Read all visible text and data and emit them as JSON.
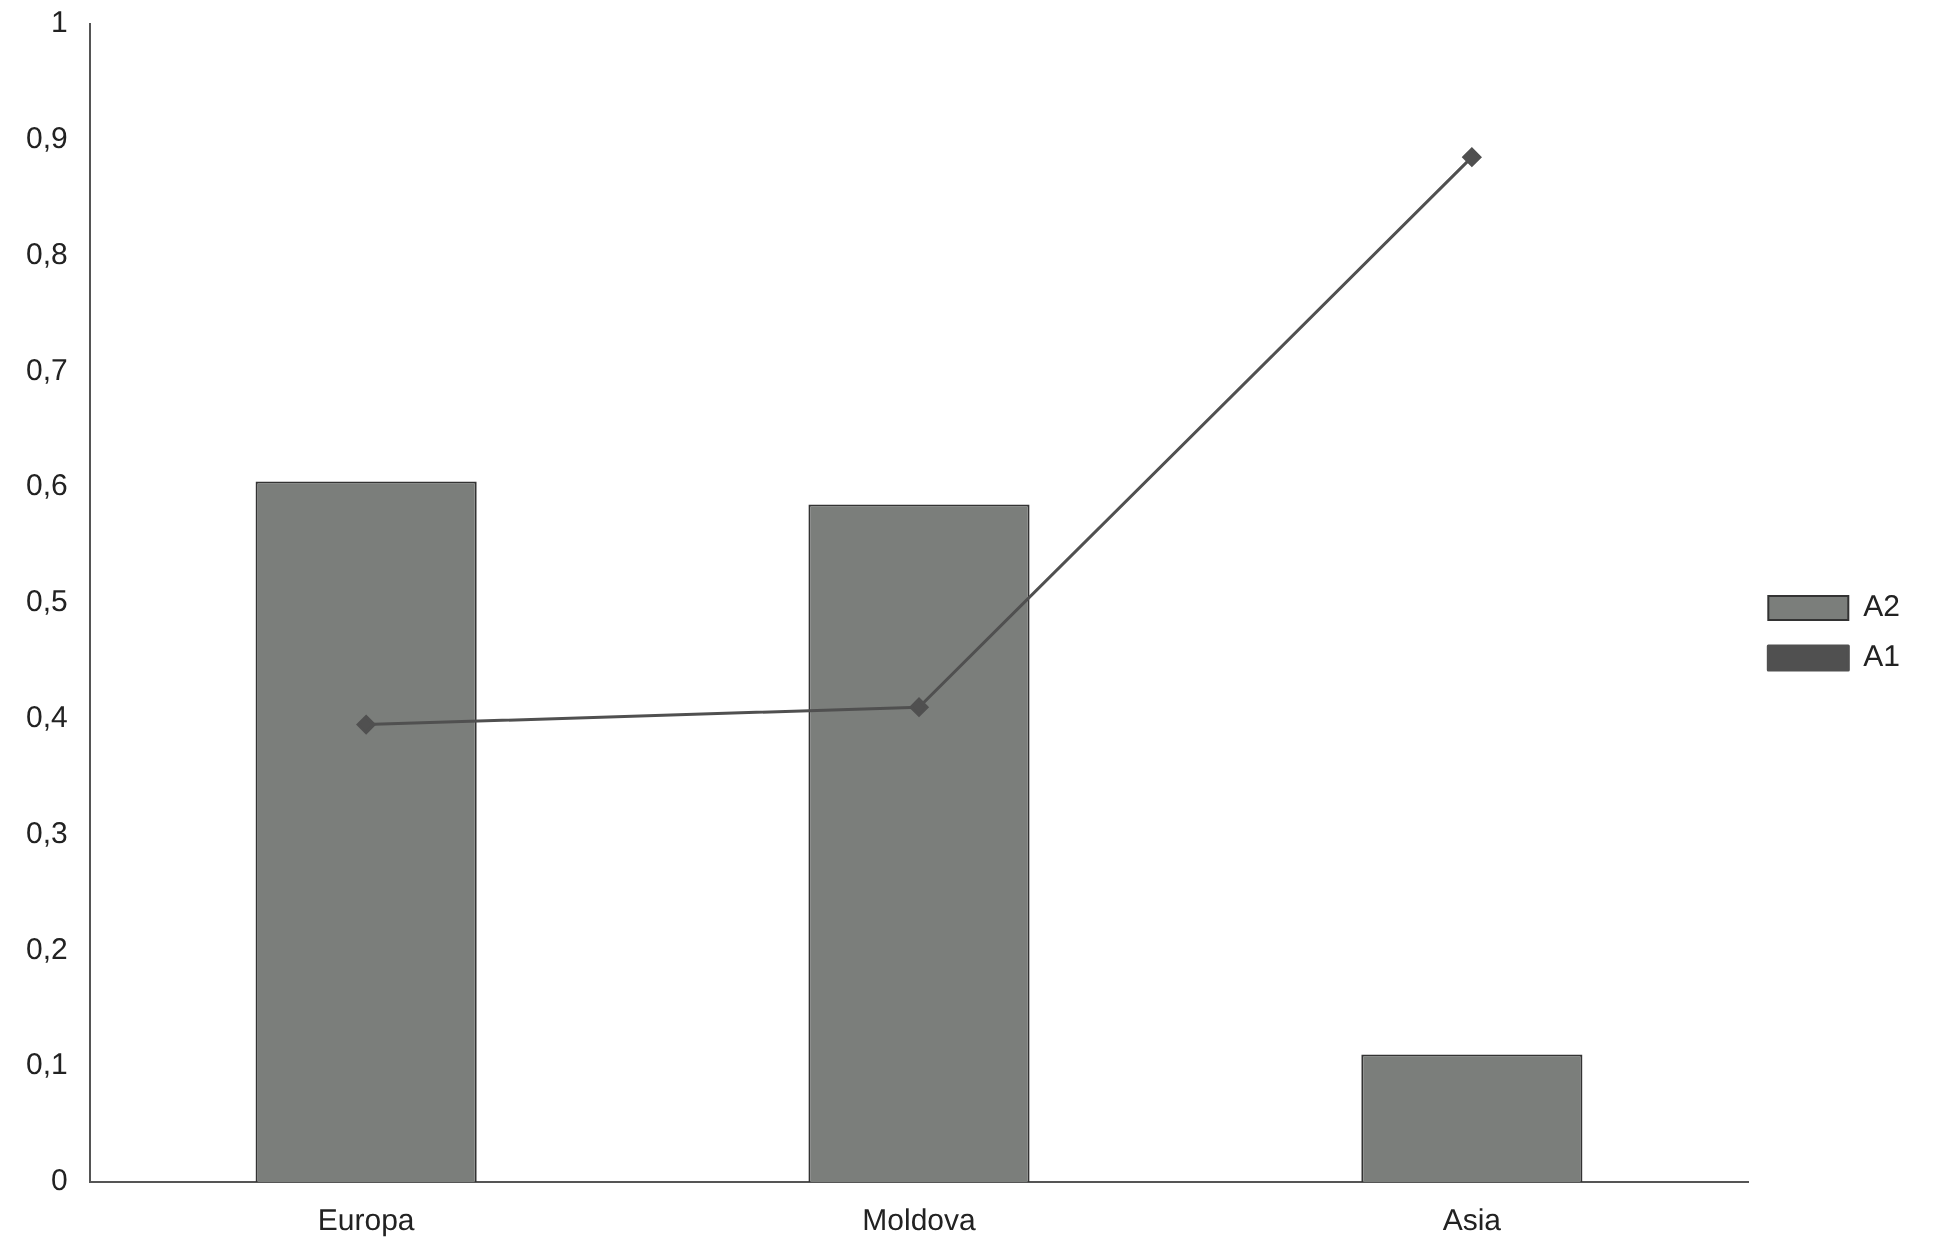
{
  "chart_data": {
    "type": "bar",
    "categories": [
      "Europa",
      "Moldova",
      "Asia"
    ],
    "series": [
      {
        "name": "A2",
        "color": "#7b7e7b",
        "values": [
          0.605,
          0.585,
          0.11
        ]
      },
      {
        "name": "A1",
        "type": "line",
        "color": "#505050",
        "values": [
          0.395,
          0.41,
          0.885
        ]
      }
    ],
    "ylim": [
      0,
      1
    ],
    "yticks": [
      0,
      {
        "value": 0.1,
        "label": "0,1"
      },
      {
        "value": 0.2,
        "label": "0,2"
      },
      {
        "value": 0.3,
        "label": "0,3"
      },
      {
        "value": 0.4,
        "label": "0,4"
      },
      {
        "value": 0.5,
        "label": "0,5"
      },
      {
        "value": 0.6,
        "label": "0,6"
      },
      {
        "value": 0.7,
        "label": "0,7"
      },
      {
        "value": 0.8,
        "label": "0,8"
      },
      {
        "value": 0.9,
        "label": "0,9"
      },
      1
    ],
    "grid": false,
    "legend": "right",
    "marker": "diamond",
    "line_style": "solid"
  }
}
